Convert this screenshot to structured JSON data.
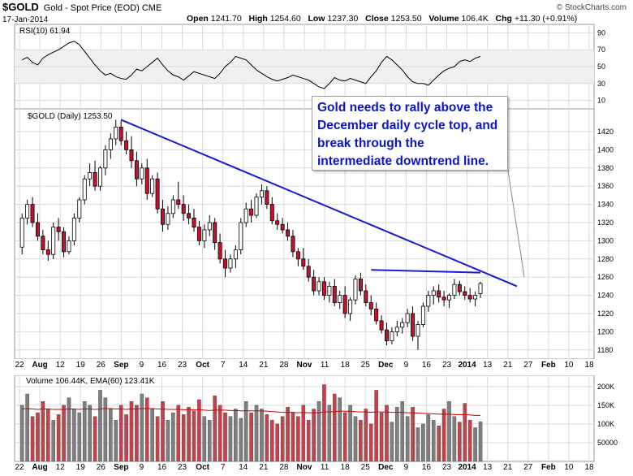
{
  "header": {
    "symbol": "$GOLD",
    "description": "Gold - Spot Price (EOD)",
    "exchange": "CME",
    "date": "17-Jan-2014",
    "open_label": "Open",
    "open": "1241.70",
    "high_label": "High",
    "high": "1254.60",
    "low_label": "Low",
    "low": "1237.30",
    "close_label": "Close",
    "close": "1253.50",
    "volume_label": "Volume",
    "volume": "106.4K",
    "chg_label": "Chg",
    "chg": "+11.30 (+0.91%)",
    "credit": "© StockCharts.com"
  },
  "annotation": "Gold needs to rally above the December daily cycle top, and break through the intermediate downtrend line.",
  "colors": {
    "up": "#ffffff",
    "down": "#c8102e",
    "wick": "#000000",
    "trendline": "#1a1ad8",
    "grid": "#d9d9d9",
    "panel_bg": "#f0f0f0",
    "vol_up": "#7f7f7f",
    "vol_down": "#c8404a",
    "ema": "#d00000"
  },
  "chart_data": [
    {
      "type": "line",
      "title": "RSI(10) 61.94",
      "ylim": [
        0,
        100
      ],
      "ytick_labels": [
        "10",
        "30",
        "50",
        "70",
        "90"
      ],
      "values": [
        58,
        61,
        55,
        52,
        60,
        64,
        67,
        70,
        74,
        78,
        80,
        76,
        68,
        60,
        52,
        45,
        40,
        42,
        38,
        36,
        35,
        40,
        47,
        45,
        50,
        55,
        60,
        52,
        45,
        40,
        38,
        34,
        39,
        44,
        42,
        40,
        38,
        36,
        42,
        50,
        55,
        62,
        60,
        58,
        52,
        46,
        42,
        38,
        35,
        33,
        35,
        37,
        40,
        38,
        36,
        34,
        30,
        26,
        24,
        30,
        37,
        34,
        33,
        36,
        34,
        32,
        30,
        38,
        45,
        55,
        62,
        58,
        52,
        46,
        38,
        32,
        30,
        30,
        28,
        34,
        40,
        45,
        48,
        50,
        56,
        58,
        56,
        60,
        62
      ]
    },
    {
      "type": "candlestick",
      "title": "$GOLD (Daily) 1253.50",
      "ylim": [
        1170,
        1445
      ],
      "ytick_labels": [
        "1180",
        "1200",
        "1220",
        "1240",
        "1260",
        "1280",
        "1300",
        "1320",
        "1340",
        "1360",
        "1380",
        "1400",
        "1420"
      ],
      "x_labels": [
        "22",
        "Aug",
        "12",
        "19",
        "26",
        "Sep",
        "9",
        "16",
        "23",
        "Oct",
        "7",
        "14",
        "21",
        "28",
        "Nov",
        "11",
        "18",
        "25",
        "Dec",
        "9",
        "16",
        "23",
        "2014",
        "13",
        "21",
        "27",
        "Feb",
        "10",
        "18"
      ],
      "candles": [
        [
          1293,
          1330,
          1285,
          1325
        ],
        [
          1325,
          1345,
          1318,
          1340
        ],
        [
          1340,
          1348,
          1315,
          1320
        ],
        [
          1320,
          1330,
          1300,
          1305
        ],
        [
          1305,
          1312,
          1285,
          1290
        ],
        [
          1290,
          1300,
          1278,
          1285
        ],
        [
          1285,
          1320,
          1280,
          1315
        ],
        [
          1315,
          1325,
          1300,
          1310
        ],
        [
          1310,
          1315,
          1282,
          1288
        ],
        [
          1288,
          1305,
          1285,
          1300
        ],
        [
          1300,
          1330,
          1295,
          1325
        ],
        [
          1325,
          1348,
          1320,
          1345
        ],
        [
          1345,
          1372,
          1340,
          1368
        ],
        [
          1368,
          1385,
          1360,
          1375
        ],
        [
          1375,
          1388,
          1355,
          1360
        ],
        [
          1360,
          1382,
          1355,
          1380
        ],
        [
          1380,
          1405,
          1372,
          1400
        ],
        [
          1400,
          1418,
          1390,
          1412
        ],
        [
          1412,
          1433,
          1405,
          1425
        ],
        [
          1425,
          1432,
          1405,
          1410
        ],
        [
          1410,
          1420,
          1395,
          1400
        ],
        [
          1400,
          1415,
          1380,
          1388
        ],
        [
          1388,
          1398,
          1360,
          1368
        ],
        [
          1368,
          1385,
          1362,
          1380
        ],
        [
          1380,
          1390,
          1345,
          1352
        ],
        [
          1352,
          1372,
          1348,
          1368
        ],
        [
          1368,
          1375,
          1330,
          1335
        ],
        [
          1335,
          1345,
          1310,
          1318
        ],
        [
          1318,
          1338,
          1312,
          1330
        ],
        [
          1330,
          1350,
          1325,
          1345
        ],
        [
          1345,
          1365,
          1335,
          1340
        ],
        [
          1340,
          1350,
          1322,
          1330
        ],
        [
          1330,
          1340,
          1318,
          1325
        ],
        [
          1325,
          1335,
          1310,
          1315
        ],
        [
          1315,
          1322,
          1295,
          1300
        ],
        [
          1300,
          1318,
          1292,
          1312
        ],
        [
          1312,
          1328,
          1305,
          1320
        ],
        [
          1320,
          1325,
          1290,
          1298
        ],
        [
          1298,
          1308,
          1275,
          1280
        ],
        [
          1280,
          1290,
          1260,
          1270
        ],
        [
          1270,
          1285,
          1265,
          1280
        ],
        [
          1280,
          1295,
          1270,
          1290
        ],
        [
          1290,
          1325,
          1285,
          1320
        ],
        [
          1320,
          1342,
          1315,
          1335
        ],
        [
          1335,
          1345,
          1320,
          1328
        ],
        [
          1328,
          1352,
          1325,
          1348
        ],
        [
          1348,
          1362,
          1340,
          1355
        ],
        [
          1355,
          1360,
          1335,
          1340
        ],
        [
          1340,
          1348,
          1318,
          1322
        ],
        [
          1322,
          1330,
          1312,
          1318
        ],
        [
          1318,
          1325,
          1308,
          1312
        ],
        [
          1312,
          1320,
          1300,
          1305
        ],
        [
          1305,
          1312,
          1282,
          1288
        ],
        [
          1288,
          1292,
          1272,
          1280
        ],
        [
          1280,
          1292,
          1268,
          1272
        ],
        [
          1272,
          1280,
          1255,
          1260
        ],
        [
          1260,
          1268,
          1240,
          1245
        ],
        [
          1245,
          1260,
          1240,
          1255
        ],
        [
          1255,
          1260,
          1235,
          1240
        ],
        [
          1240,
          1255,
          1232,
          1250
        ],
        [
          1250,
          1258,
          1228,
          1232
        ],
        [
          1232,
          1245,
          1225,
          1240
        ],
        [
          1240,
          1250,
          1215,
          1220
        ],
        [
          1220,
          1238,
          1212,
          1235
        ],
        [
          1235,
          1262,
          1230,
          1258
        ],
        [
          1258,
          1265,
          1240,
          1245
        ],
        [
          1245,
          1252,
          1228,
          1232
        ],
        [
          1232,
          1240,
          1218,
          1225
        ],
        [
          1225,
          1232,
          1208,
          1212
        ],
        [
          1212,
          1218,
          1198,
          1202
        ],
        [
          1202,
          1210,
          1185,
          1190
        ],
        [
          1190,
          1205,
          1186,
          1200
        ],
        [
          1200,
          1212,
          1195,
          1205
        ],
        [
          1205,
          1215,
          1198,
          1210
        ],
        [
          1210,
          1225,
          1205,
          1220
        ],
        [
          1220,
          1228,
          1190,
          1195
        ],
        [
          1195,
          1212,
          1180,
          1208
        ],
        [
          1208,
          1232,
          1205,
          1228
        ],
        [
          1228,
          1245,
          1222,
          1240
        ],
        [
          1240,
          1250,
          1230,
          1245
        ],
        [
          1245,
          1252,
          1232,
          1238
        ],
        [
          1238,
          1245,
          1228,
          1235
        ],
        [
          1235,
          1242,
          1226,
          1240
        ],
        [
          1240,
          1258,
          1236,
          1252
        ],
        [
          1252,
          1256,
          1240,
          1244
        ],
        [
          1244,
          1250,
          1235,
          1240
        ],
        [
          1240,
          1248,
          1232,
          1236
        ],
        [
          1236,
          1244,
          1228,
          1240
        ],
        [
          1242,
          1255,
          1237,
          1253
        ]
      ],
      "trendlines": [
        {
          "from": [
            19,
            1433
          ],
          "to": [
            95,
            1250
          ]
        },
        {
          "from": [
            67,
            1268
          ],
          "to": [
            88,
            1265
          ]
        }
      ]
    },
    {
      "type": "bar",
      "title": "Volume 106.44K, EMA(60) 123.41K",
      "ytick_labels": [
        "50000",
        "100K",
        "150K",
        "200K"
      ],
      "ylim": [
        0,
        230000
      ],
      "values": [
        150,
        180,
        120,
        130,
        160,
        140,
        110,
        125,
        150,
        170,
        140,
        130,
        160,
        150,
        120,
        190,
        170,
        140,
        110,
        150,
        125,
        160,
        150,
        180,
        170,
        140,
        120,
        160,
        110,
        130,
        150,
        125,
        145,
        135,
        165,
        120,
        110,
        175,
        150,
        130,
        120,
        140,
        115,
        160,
        130,
        150,
        140,
        125,
        110,
        100,
        120,
        145,
        130,
        120,
        150,
        110,
        140,
        160,
        205,
        150,
        180,
        170,
        130,
        150,
        120,
        110,
        140,
        100,
        190,
        130,
        150,
        105,
        145,
        160,
        120,
        145,
        90,
        100,
        125,
        110,
        95,
        140,
        160,
        120,
        105,
        155,
        110,
        90,
        106
      ],
      "ema": [
        140,
        141,
        140,
        139,
        140,
        140,
        139,
        139,
        139,
        140,
        140,
        139,
        140,
        140,
        139,
        140,
        141,
        141,
        140,
        140,
        139,
        140,
        140,
        141,
        141,
        141,
        140,
        140,
        139,
        139,
        139,
        138,
        138,
        138,
        138,
        137,
        136,
        137,
        137,
        137,
        136,
        136,
        135,
        135,
        135,
        135,
        135,
        134,
        133,
        132,
        131,
        131,
        131,
        130,
        131,
        130,
        130,
        130,
        132,
        132,
        133,
        134,
        134,
        134,
        133,
        132,
        132,
        131,
        132,
        132,
        132,
        131,
        131,
        131,
        130,
        130,
        129,
        128,
        128,
        127,
        126,
        126,
        126,
        125,
        125,
        125,
        124,
        123,
        123
      ]
    }
  ]
}
